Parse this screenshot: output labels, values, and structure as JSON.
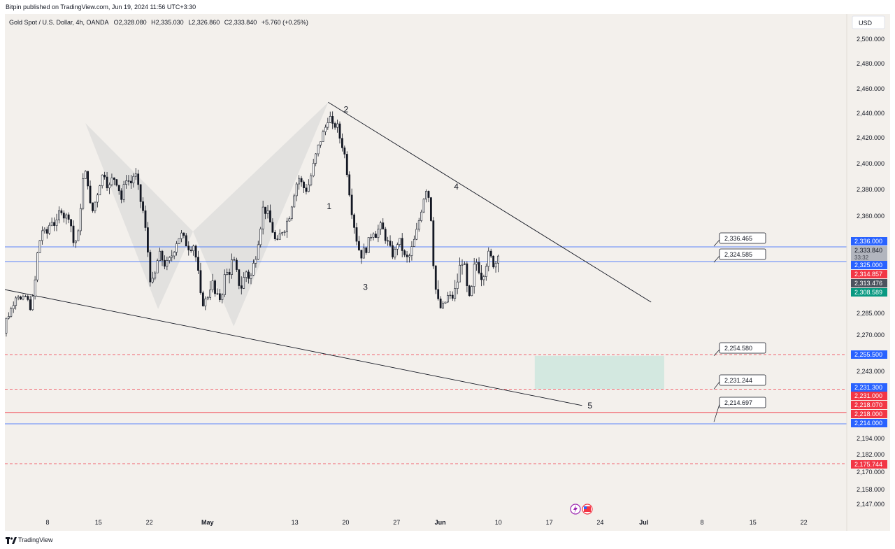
{
  "header": {
    "publisher": "Bitpin published on TradingView.com, Jun 19, 2024 11:56 UTC+3:30"
  },
  "legend": {
    "symbol": "Gold Spot / U.S. Dollar, 4h, OANDA",
    "open": "O2,328.080",
    "high": "H2,335.030",
    "low": "L2,326.860",
    "close": "C2,333.840",
    "change": "+5.760 (+0.25%)"
  },
  "currency_label": "USD",
  "footer": {
    "brand": "TradingView"
  },
  "colors": {
    "background": "#f3f0ec",
    "candle": "#131722",
    "blue_line": "#2962ff",
    "red_line": "#f23645",
    "pattern_fill": "#d9d9d9",
    "target_zone": "#cfe7df",
    "badge_grey": "#b2b5be",
    "badge_dark": "#4c525e",
    "badge_green": "#089981"
  },
  "chart_data": {
    "type": "candlestick",
    "title": "Gold Spot / U.S. Dollar, 4h, OANDA",
    "timeframe": "4h",
    "ylim": [
      2140,
      2510
    ],
    "y_ticks": [
      {
        "v": 2500,
        "label": "2,500.000"
      },
      {
        "v": 2480,
        "label": "2,480.000"
      },
      {
        "v": 2460,
        "label": "2,460.000"
      },
      {
        "v": 2440,
        "label": "2,440.000"
      },
      {
        "v": 2420,
        "label": "2,420.000"
      },
      {
        "v": 2400,
        "label": "2,400.000"
      },
      {
        "v": 2380,
        "label": "2,380.000"
      },
      {
        "v": 2360,
        "label": "2,360.000"
      },
      {
        "v": 2285,
        "label": "2,285.000"
      },
      {
        "v": 2270,
        "label": "2,270.000"
      },
      {
        "v": 2243,
        "label": "2,243.000"
      },
      {
        "v": 2194,
        "label": "2,194.000"
      },
      {
        "v": 2182,
        "label": "2,182.000"
      },
      {
        "v": 2170,
        "label": "2,170.000"
      },
      {
        "v": 2158,
        "label": "2,158.000"
      },
      {
        "v": 2147,
        "label": "2,147.000"
      }
    ],
    "x_ticks": [
      {
        "d": 8,
        "label": "8"
      },
      {
        "d": 15,
        "label": "15"
      },
      {
        "d": 22,
        "label": "22"
      },
      {
        "d": 30,
        "label": "May"
      },
      {
        "d": 42,
        "label": "13"
      },
      {
        "d": 49,
        "label": "20"
      },
      {
        "d": 56,
        "label": "27"
      },
      {
        "d": 62,
        "label": "Jun"
      },
      {
        "d": 70,
        "label": "10"
      },
      {
        "d": 77,
        "label": "17"
      },
      {
        "d": 84,
        "label": "24"
      },
      {
        "d": 90,
        "label": "Jul"
      },
      {
        "d": 98,
        "label": "8"
      },
      {
        "d": 105,
        "label": "15"
      },
      {
        "d": 112,
        "label": "22"
      }
    ],
    "x_axis_note": "d = days since Apr 1, 2024",
    "price_path": [
      [
        1.0,
        2230
      ],
      [
        1.6,
        2262
      ],
      [
        2.3,
        2280
      ],
      [
        3.0,
        2290
      ],
      [
        3.8,
        2310
      ],
      [
        4.4,
        2298
      ],
      [
        5.0,
        2305
      ],
      [
        5.6,
        2292
      ],
      [
        6.1,
        2306
      ],
      [
        6.6,
        2330
      ],
      [
        7.2,
        2350
      ],
      [
        7.8,
        2344
      ],
      [
        8.5,
        2358
      ],
      [
        9.2,
        2352
      ],
      [
        9.8,
        2368
      ],
      [
        10.4,
        2358
      ],
      [
        11.0,
        2362
      ],
      [
        11.6,
        2338
      ],
      [
        12.2,
        2344
      ],
      [
        12.8,
        2386
      ],
      [
        13.4,
        2394
      ],
      [
        14.0,
        2360
      ],
      [
        14.6,
        2372
      ],
      [
        15.2,
        2386
      ],
      [
        15.8,
        2394
      ],
      [
        16.4,
        2380
      ],
      [
        17.0,
        2390
      ],
      [
        17.6,
        2386
      ],
      [
        18.2,
        2372
      ],
      [
        18.8,
        2390
      ],
      [
        19.4,
        2384
      ],
      [
        20.0,
        2394
      ],
      [
        20.6,
        2376
      ],
      [
        21.2,
        2362
      ],
      [
        21.8,
        2332
      ],
      [
        22.3,
        2310
      ],
      [
        22.8,
        2318
      ],
      [
        23.3,
        2330
      ],
      [
        23.9,
        2326
      ],
      [
        24.5,
        2322
      ],
      [
        25.1,
        2330
      ],
      [
        25.7,
        2340
      ],
      [
        26.3,
        2346
      ],
      [
        26.9,
        2340
      ],
      [
        27.5,
        2336
      ],
      [
        28.1,
        2338
      ],
      [
        28.7,
        2318
      ],
      [
        29.3,
        2296
      ],
      [
        29.9,
        2302
      ],
      [
        30.5,
        2316
      ],
      [
        31.1,
        2306
      ],
      [
        31.7,
        2302
      ],
      [
        32.3,
        2316
      ],
      [
        32.9,
        2320
      ],
      [
        33.5,
        2326
      ],
      [
        34.1,
        2316
      ],
      [
        34.7,
        2312
      ],
      [
        35.3,
        2320
      ],
      [
        35.9,
        2316
      ],
      [
        36.5,
        2326
      ],
      [
        37.1,
        2346
      ],
      [
        37.7,
        2368
      ],
      [
        38.3,
        2360
      ],
      [
        38.9,
        2350
      ],
      [
        39.5,
        2336
      ],
      [
        40.1,
        2348
      ],
      [
        40.7,
        2352
      ],
      [
        41.3,
        2362
      ],
      [
        41.9,
        2378
      ],
      [
        42.5,
        2390
      ],
      [
        43.1,
        2382
      ],
      [
        43.7,
        2380
      ],
      [
        44.3,
        2392
      ],
      [
        44.9,
        2406
      ],
      [
        45.5,
        2418
      ],
      [
        46.1,
        2426
      ],
      [
        46.7,
        2440
      ],
      [
        47.2,
        2428
      ],
      [
        47.7,
        2432
      ],
      [
        48.2,
        2420
      ],
      [
        48.7,
        2412
      ],
      [
        49.2,
        2394
      ],
      [
        49.7,
        2370
      ],
      [
        50.2,
        2352
      ],
      [
        50.7,
        2336
      ],
      [
        51.2,
        2330
      ],
      [
        51.7,
        2334
      ],
      [
        52.2,
        2340
      ],
      [
        52.7,
        2350
      ],
      [
        53.2,
        2346
      ],
      [
        53.7,
        2352
      ],
      [
        54.2,
        2348
      ],
      [
        54.7,
        2340
      ],
      [
        55.2,
        2332
      ],
      [
        55.7,
        2330
      ],
      [
        56.2,
        2342
      ],
      [
        56.7,
        2336
      ],
      [
        57.2,
        2326
      ],
      [
        57.7,
        2328
      ],
      [
        58.2,
        2336
      ],
      [
        58.7,
        2346
      ],
      [
        59.2,
        2360
      ],
      [
        59.7,
        2374
      ],
      [
        60.2,
        2384
      ],
      [
        60.7,
        2362
      ],
      [
        61.1,
        2322
      ],
      [
        61.6,
        2302
      ],
      [
        62.1,
        2290
      ],
      [
        62.6,
        2296
      ],
      [
        63.1,
        2306
      ],
      [
        63.6,
        2302
      ],
      [
        64.1,
        2310
      ],
      [
        64.6,
        2320
      ],
      [
        65.1,
        2328
      ],
      [
        65.6,
        2312
      ],
      [
        66.1,
        2300
      ],
      [
        66.6,
        2320
      ],
      [
        67.1,
        2326
      ],
      [
        67.6,
        2318
      ],
      [
        68.1,
        2322
      ],
      [
        68.6,
        2330
      ],
      [
        69.1,
        2326
      ],
      [
        69.6,
        2324
      ],
      [
        70.0,
        2333.84
      ]
    ],
    "pivots": [
      {
        "id": "p2",
        "label": "2",
        "d": 46.6,
        "price": 2449
      },
      {
        "id": "p1",
        "label": "1",
        "d": 46.4,
        "price": 2405
      },
      {
        "id": "p4",
        "label": "4",
        "d": 63.5,
        "price": 2393
      },
      {
        "id": "p3",
        "label": "3",
        "d": 51.2,
        "price": 2316
      },
      {
        "id": "p5",
        "label": "5",
        "d": 81.5,
        "price": 2222
      }
    ],
    "pattern_points": [
      {
        "d": 13.2,
        "price": 2432
      },
      {
        "d": 23.2,
        "price": 2290
      },
      {
        "d": 28.0,
        "price": 2348
      },
      {
        "d": 33.6,
        "price": 2276
      },
      {
        "d": 46.6,
        "price": 2449
      }
    ],
    "trendlines": [
      {
        "from": {
          "d": 0.0,
          "price": 2312
        },
        "to": {
          "d": 81.5,
          "price": 2222
        }
      },
      {
        "from": {
          "d": 46.6,
          "price": 2449
        },
        "to": {
          "d": 91.0,
          "price": 2298
        }
      }
    ],
    "target_zone": {
      "d_start": 75.0,
      "d_end": 92.8,
      "top": 2254.58,
      "bottom": 2231.244
    },
    "horizontal_lines": [
      {
        "price": 2336.0,
        "color": "#2962ff",
        "style": "solid"
      },
      {
        "price": 2325.0,
        "color": "#2962ff",
        "style": "solid"
      },
      {
        "price": 2255.5,
        "color": "#f23645",
        "style": "dashed"
      },
      {
        "price": 2231.3,
        "color": "#f23645",
        "style": "dashed"
      },
      {
        "price": 2218.07,
        "color": "#f23645",
        "style": "solid"
      },
      {
        "price": 2214.0,
        "color": "#2962ff",
        "style": "solid"
      },
      {
        "price": 2175.744,
        "color": "#f23645",
        "style": "dashed"
      }
    ],
    "callouts": [
      {
        "label": "2,336.465",
        "price": 2336.465
      },
      {
        "label": "2,324.585",
        "price": 2324.585
      },
      {
        "label": "2,254.580",
        "price": 2254.58
      },
      {
        "label": "2,231.244",
        "price": 2231.244
      },
      {
        "label": "2,214.697",
        "price": 2214.697
      }
    ],
    "price_badges": [
      {
        "label": "2,336.000",
        "price": 2336.0,
        "color": "#2962ff",
        "text_color": "#ffffff"
      },
      {
        "label": "2,333.840",
        "price": 2333.84,
        "color": "#b2b5be",
        "text_color": "#131722",
        "sub": "33:32"
      },
      {
        "label": "2,325.000",
        "price": 2325.0,
        "color": "#2962ff",
        "text_color": "#ffffff"
      },
      {
        "label": "2,314.857",
        "price": 2314.857,
        "color": "#f23645",
        "text_color": "#ffffff"
      },
      {
        "label": "2,313.476",
        "price": 2313.476,
        "color": "#4c525e",
        "text_color": "#ffffff"
      },
      {
        "label": "2,308.589",
        "price": 2308.589,
        "color": "#089981",
        "text_color": "#ffffff"
      },
      {
        "label": "2,255.500",
        "price": 2255.5,
        "color": "#2962ff",
        "text_color": "#ffffff"
      },
      {
        "label": "2,231.300",
        "price": 2231.3,
        "color": "#2962ff",
        "text_color": "#ffffff"
      },
      {
        "label": "2,231.000",
        "price": 2231.0,
        "color": "#f23645",
        "text_color": "#ffffff"
      },
      {
        "label": "2,218.070",
        "price": 2218.07,
        "color": "#f23645",
        "text_color": "#ffffff"
      },
      {
        "label": "2,218.000",
        "price": 2218.0,
        "color": "#f23645",
        "text_color": "#ffffff"
      },
      {
        "label": "2,214.000",
        "price": 2214.0,
        "color": "#2962ff",
        "text_color": "#ffffff"
      },
      {
        "label": "2,175.744",
        "price": 2175.744,
        "color": "#f23645",
        "text_color": "#ffffff"
      }
    ]
  }
}
